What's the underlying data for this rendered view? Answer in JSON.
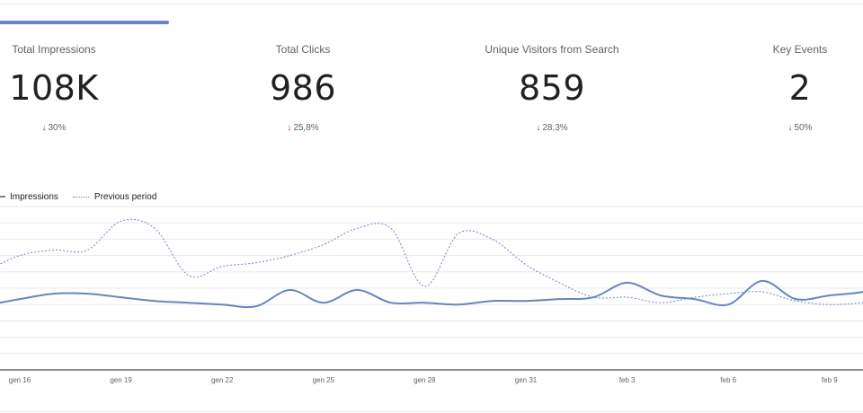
{
  "metrics": [
    {
      "label": "Total Impressions",
      "value": "108K",
      "change": "30%"
    },
    {
      "label": "Total Clicks",
      "value": "986",
      "change": "25,8%"
    },
    {
      "label": "Unique Visitors from Search",
      "value": "859",
      "change": "28,3%"
    },
    {
      "label": "Key Events",
      "value": "2",
      "change": "50%"
    }
  ],
  "colors": {
    "accent": "#6a84bf",
    "negative": "#c5221f",
    "grid": "#e8eaed"
  },
  "chart_data": {
    "type": "line",
    "title": "",
    "xlabel": "",
    "ylabel": "",
    "grid": true,
    "legend_position": "top-left",
    "x_tick_labels": [
      "gen 16",
      "gen 19",
      "gen 22",
      "gen 25",
      "gen 28",
      "gen 31",
      "feb 3",
      "feb 6",
      "feb 9"
    ],
    "ylim": [
      0,
      9
    ],
    "series": [
      {
        "name": "Impressions",
        "style": "solid",
        "values": [
          3.6,
          3.6,
          3.9,
          4.2,
          4.2,
          4.0,
          3.8,
          3.7,
          3.6,
          3.5,
          4.4,
          3.7,
          4.4,
          3.7,
          3.7,
          3.6,
          3.8,
          3.8,
          3.9,
          4.0,
          4.8,
          4.1,
          3.9,
          3.6,
          4.9,
          3.9,
          4.1,
          4.3,
          4.8,
          3.6,
          4.8
        ]
      },
      {
        "name": "Previous period",
        "style": "dashed",
        "values": [
          5.1,
          5.5,
          6.3,
          6.6,
          6.6,
          8.2,
          7.8,
          5.2,
          5.7,
          5.9,
          6.3,
          6.9,
          7.8,
          7.8,
          4.6,
          7.5,
          7.2,
          5.8,
          4.8,
          4.0,
          4.0,
          3.7,
          4.0,
          4.2,
          4.3,
          3.8,
          3.6,
          3.7
        ]
      }
    ]
  }
}
